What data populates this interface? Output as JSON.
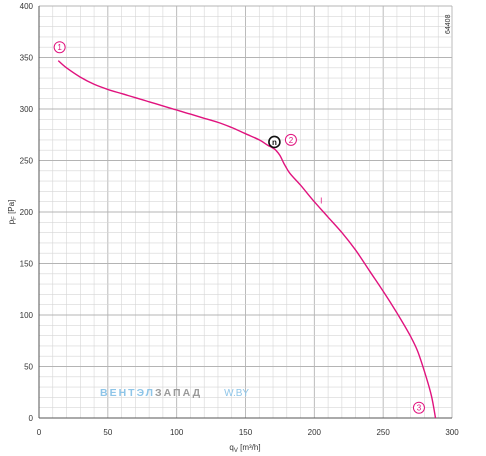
{
  "chart_data": {
    "type": "line",
    "xlabel": "q_V [m³/h]",
    "ylabel": "p_F [Pa]",
    "xlim": [
      0,
      300
    ],
    "ylim": [
      0,
      400
    ],
    "x_ticks": [
      0,
      50,
      100,
      150,
      200,
      250,
      300
    ],
    "y_ticks": [
      0,
      50,
      100,
      150,
      200,
      250,
      300,
      350,
      400
    ],
    "grid": true,
    "series": [
      {
        "color": "#e0137e",
        "x": [
          14,
          20,
          30,
          40,
          50,
          60,
          70,
          80,
          90,
          100,
          110,
          120,
          130,
          140,
          150,
          160,
          166,
          170,
          172,
          175,
          178,
          182,
          190,
          200,
          210,
          220,
          230,
          240,
          250,
          260,
          270,
          275,
          280,
          285,
          288
        ],
        "y": [
          347,
          340,
          331,
          324,
          319,
          315,
          311,
          307,
          303,
          299,
          295,
          291,
          287,
          282,
          276,
          270,
          265,
          262,
          260,
          255,
          247,
          238,
          226,
          210,
          195,
          180,
          163,
          143,
          123,
          102,
          79,
          65,
          45,
          22,
          0
        ]
      }
    ],
    "annotations": [
      {
        "text": "1",
        "x": 15,
        "y": 360,
        "style": "circle"
      },
      {
        "text": "2",
        "x": 183,
        "y": 270,
        "style": "circle"
      },
      {
        "text": "3",
        "x": 276,
        "y": 10,
        "style": "circle"
      },
      {
        "text": "I",
        "x": 205,
        "y": 211,
        "style": "plain"
      }
    ],
    "operating_point": {
      "x": 171,
      "y": 268,
      "label": "n"
    }
  },
  "code": "64408",
  "watermark": {
    "part1": "ВЕНТЭЛ",
    "part2": "ЗАПАД",
    "part3": "W.BY"
  }
}
